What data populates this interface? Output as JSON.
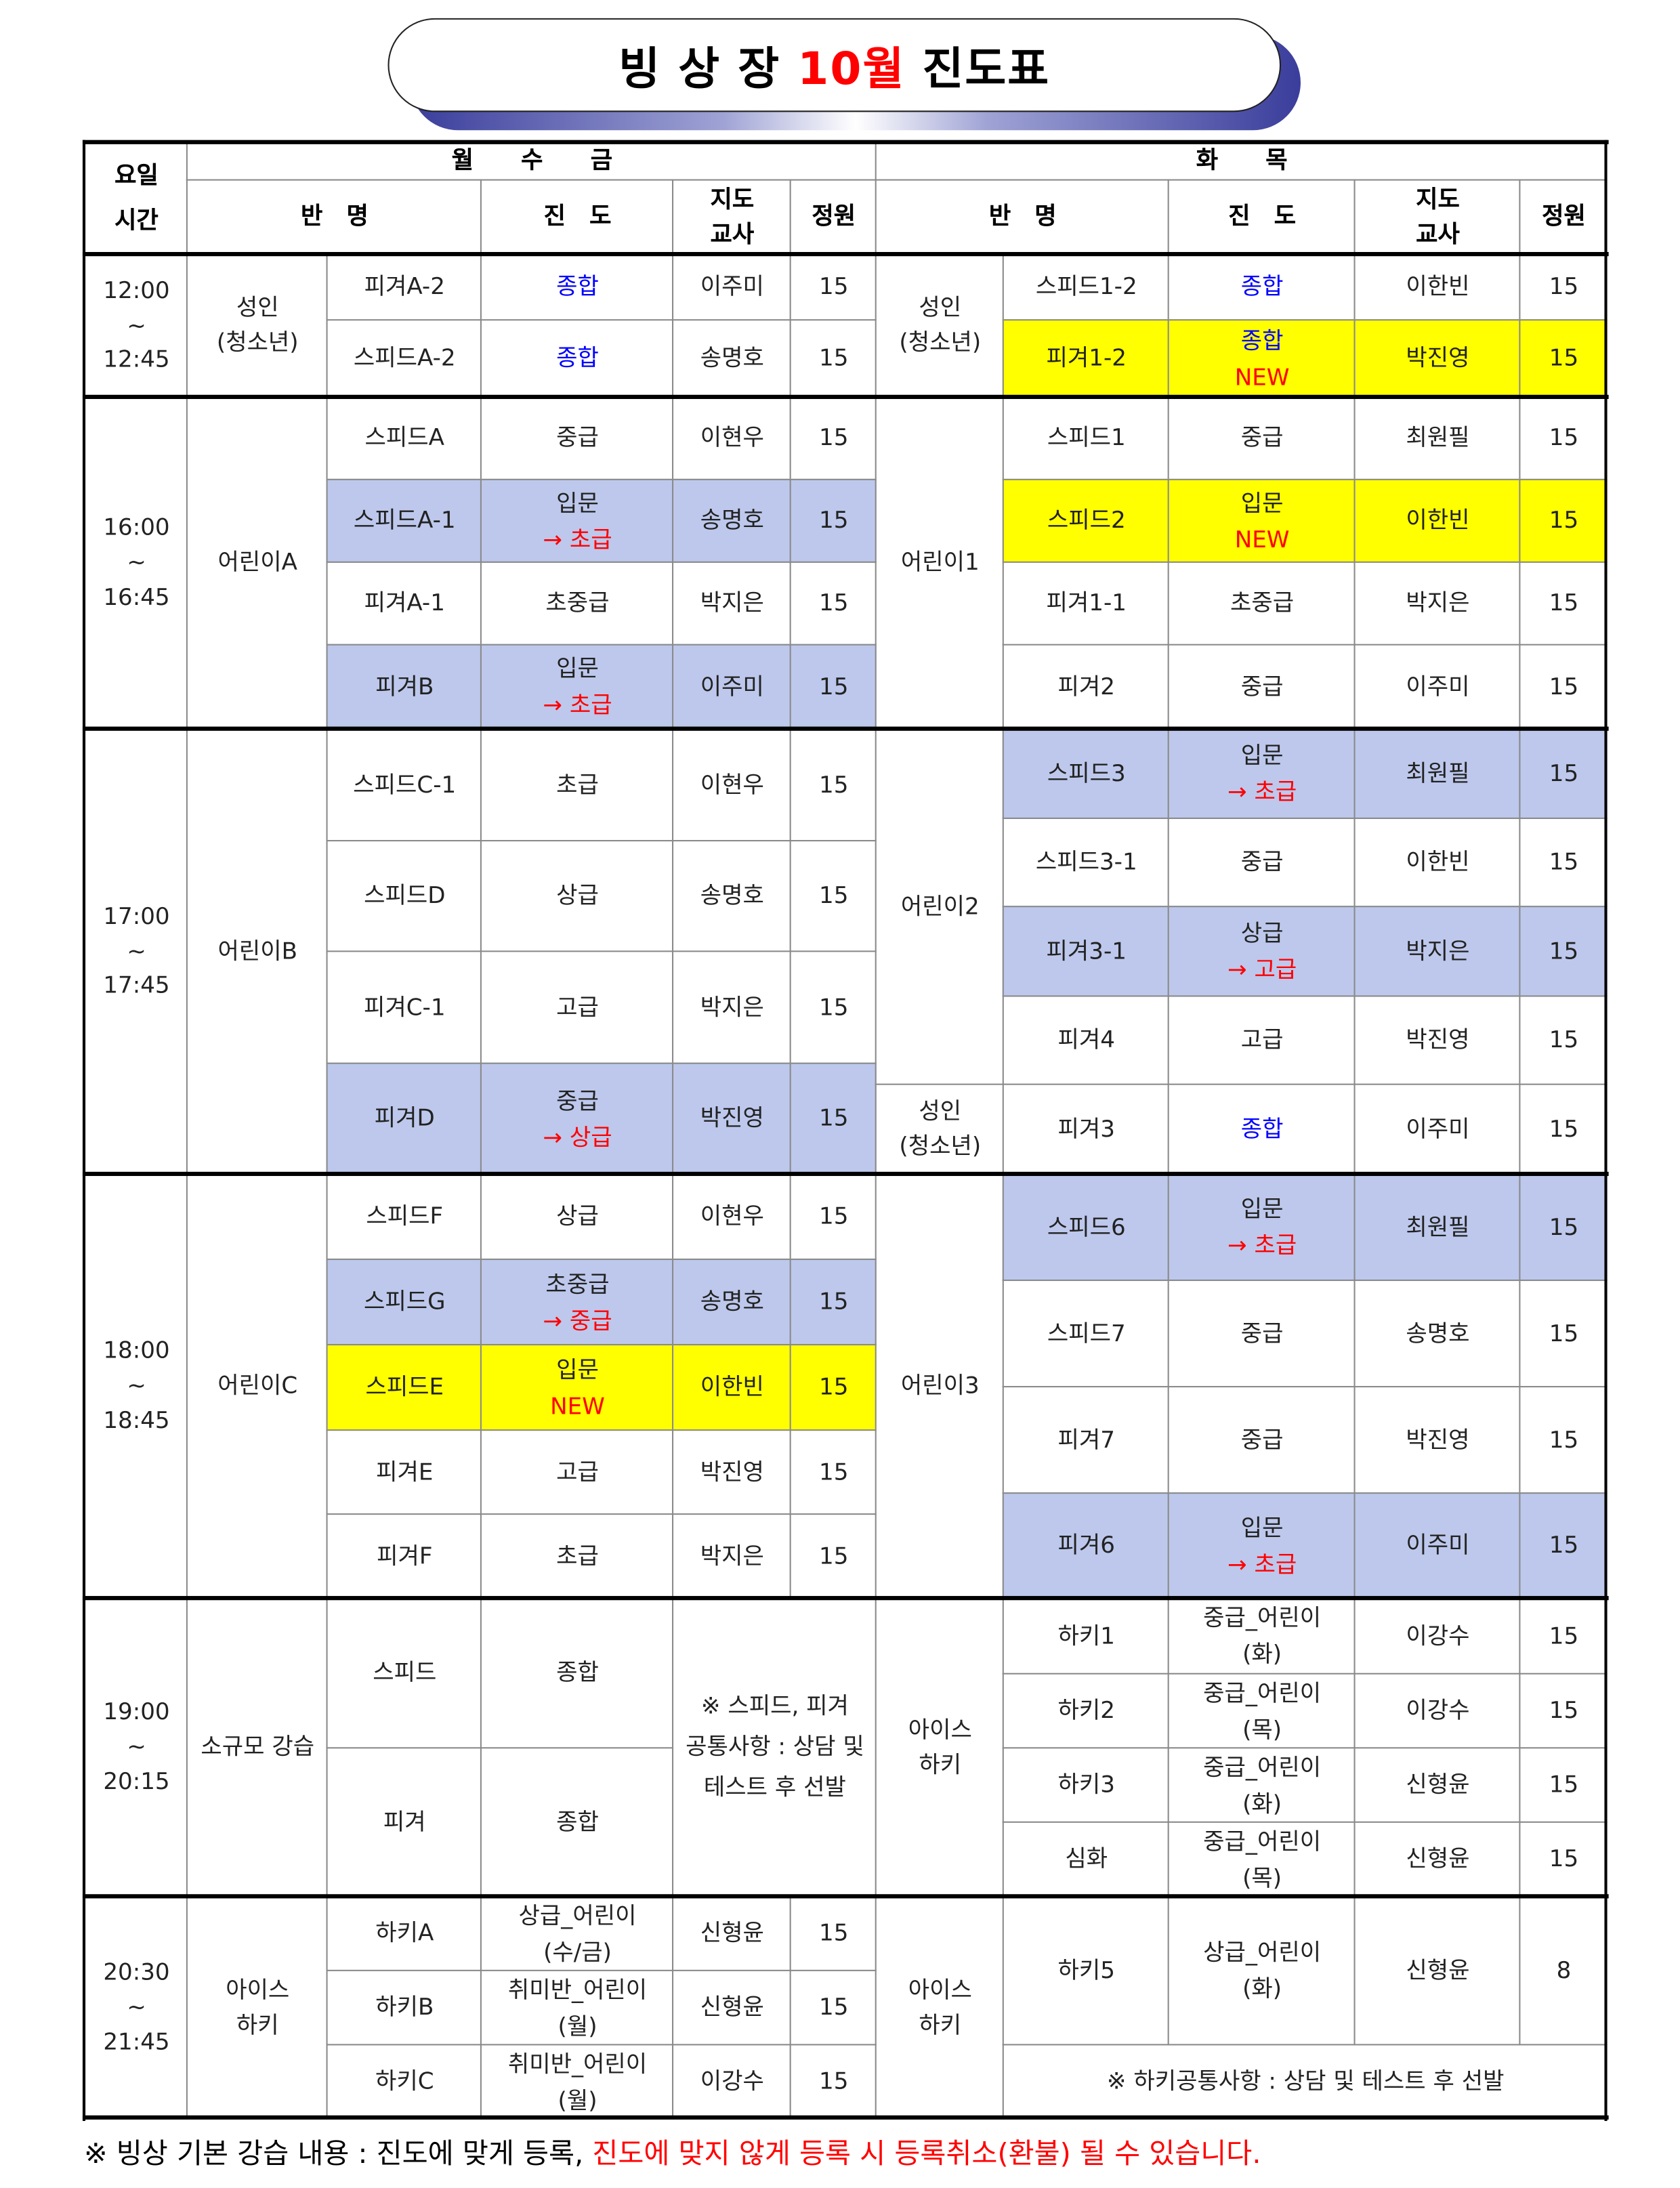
{
  "title": {
    "prefix": "빙 상 장 ",
    "month": "10월",
    "suffix": " 진도표",
    "month_color": "#ff0000"
  },
  "colors": {
    "highlight_blue": "#bdc8ec",
    "highlight_yellow": "#ffff00",
    "text_blue": "#0000ff",
    "text_red": "#ff0000"
  },
  "header": {
    "day": "요일",
    "time": "시간",
    "mwf": "월　　수　　금",
    "tt": "화　　목",
    "class_name": "반　명",
    "progress": "진　도",
    "teacher_1": "지도",
    "teacher_2": "교사",
    "capacity": "정원"
  },
  "times": [
    [
      "12:00",
      "~",
      "12:45"
    ],
    [
      "16:00",
      "~",
      "16:45"
    ],
    [
      "17:00",
      "~",
      "17:45"
    ],
    [
      "18:00",
      "~",
      "18:45"
    ],
    [
      "19:00",
      "~",
      "20:15"
    ],
    [
      "20:30",
      "~",
      "21:45"
    ]
  ],
  "mwf": {
    "groups": [
      {
        "name": [
          "성인",
          "(청소년)"
        ],
        "rows": [
          {
            "class": "피겨A-2",
            "progress": [
              {
                "text": "종합",
                "color": "blue"
              }
            ],
            "teacher": "이주미",
            "capacity": "15"
          },
          {
            "class": "스피드A-2",
            "progress": [
              {
                "text": "종합",
                "color": "blue"
              }
            ],
            "teacher": "송명호",
            "capacity": "15"
          }
        ]
      },
      {
        "name": [
          "어린이A"
        ],
        "rows": [
          {
            "class": "스피드A",
            "progress": [
              {
                "text": "중급"
              }
            ],
            "teacher": "이현우",
            "capacity": "15"
          },
          {
            "class": "스피드A-1",
            "progress": [
              {
                "text": "입문"
              },
              {
                "text": "→ 초급",
                "color": "red"
              }
            ],
            "teacher": "송명호",
            "capacity": "15",
            "highlight": "blue"
          },
          {
            "class": "피겨A-1",
            "progress": [
              {
                "text": "초중급"
              }
            ],
            "teacher": "박지은",
            "capacity": "15"
          },
          {
            "class": "피겨B",
            "progress": [
              {
                "text": "입문"
              },
              {
                "text": "→ 초급",
                "color": "red"
              }
            ],
            "teacher": "이주미",
            "capacity": "15",
            "highlight": "blue"
          }
        ]
      },
      {
        "name": [
          "어린이B"
        ],
        "rows": [
          {
            "class": "스피드C-1",
            "progress": [
              {
                "text": "초급"
              }
            ],
            "teacher": "이현우",
            "capacity": "15"
          },
          {
            "class": "스피드D",
            "progress": [
              {
                "text": "상급"
              }
            ],
            "teacher": "송명호",
            "capacity": "15"
          },
          {
            "class": "피겨C-1",
            "progress": [
              {
                "text": "고급"
              }
            ],
            "teacher": "박지은",
            "capacity": "15"
          },
          {
            "class": "피겨D",
            "progress": [
              {
                "text": "중급"
              },
              {
                "text": "→ 상급",
                "color": "red"
              }
            ],
            "teacher": "박진영",
            "capacity": "15",
            "highlight": "blue"
          }
        ]
      },
      {
        "name": [
          "어린이C"
        ],
        "rows": [
          {
            "class": "스피드F",
            "progress": [
              {
                "text": "상급"
              }
            ],
            "teacher": "이현우",
            "capacity": "15"
          },
          {
            "class": "스피드G",
            "progress": [
              {
                "text": "초중급"
              },
              {
                "text": "→ 중급",
                "color": "red"
              }
            ],
            "teacher": "송명호",
            "capacity": "15",
            "highlight": "blue"
          },
          {
            "class": "스피드E",
            "progress": [
              {
                "text": "입문"
              },
              {
                "text": "NEW",
                "color": "red"
              }
            ],
            "teacher": "이한빈",
            "capacity": "15",
            "highlight": "yellow"
          },
          {
            "class": "피겨E",
            "progress": [
              {
                "text": "고급"
              }
            ],
            "teacher": "박진영",
            "capacity": "15"
          },
          {
            "class": "피겨F",
            "progress": [
              {
                "text": "초급"
              }
            ],
            "teacher": "박지은",
            "capacity": "15"
          }
        ]
      },
      {
        "name": [
          "소규모 강습"
        ],
        "rows": [
          {
            "class": "스피드",
            "progress": [
              {
                "text": "종합"
              }
            ]
          },
          {
            "class": "피겨",
            "progress": [
              {
                "text": "종합"
              }
            ]
          }
        ],
        "note": [
          "※ 스피드, 피겨",
          "공통사항 : 상담 및",
          "테스트 후 선발"
        ]
      },
      {
        "name": [
          "아이스",
          "하키"
        ],
        "rows": [
          {
            "class": "하키A",
            "progress": [
              {
                "text": "상급_어린이"
              },
              {
                "text": "(수/금)"
              }
            ],
            "teacher": "신형윤",
            "capacity": "15"
          },
          {
            "class": "하키B",
            "progress": [
              {
                "text": "취미반_어린이"
              },
              {
                "text": "(월)"
              }
            ],
            "teacher": "신형윤",
            "capacity": "15"
          },
          {
            "class": "하키C",
            "progress": [
              {
                "text": "취미반_어린이"
              },
              {
                "text": "(월)"
              }
            ],
            "teacher": "이강수",
            "capacity": "15"
          }
        ]
      }
    ]
  },
  "tt": {
    "groups": [
      {
        "name": [
          "성인",
          "(청소년)"
        ],
        "rows": [
          {
            "class": "스피드1-2",
            "progress": [
              {
                "text": "종합",
                "color": "blue"
              }
            ],
            "teacher": "이한빈",
            "capacity": "15"
          },
          {
            "class": "피겨1-2",
            "progress": [
              {
                "text": "종합",
                "color": "blue"
              },
              {
                "text": "NEW",
                "color": "red"
              }
            ],
            "teacher": "박진영",
            "capacity": "15",
            "highlight": "yellow"
          }
        ]
      },
      {
        "name": [
          "어린이1"
        ],
        "rows": [
          {
            "class": "스피드1",
            "progress": [
              {
                "text": "중급"
              }
            ],
            "teacher": "최원필",
            "capacity": "15"
          },
          {
            "class": "스피드2",
            "progress": [
              {
                "text": "입문"
              },
              {
                "text": "NEW",
                "color": "red"
              }
            ],
            "teacher": "이한빈",
            "capacity": "15",
            "highlight": "yellow"
          },
          {
            "class": "피겨1-1",
            "progress": [
              {
                "text": "초중급"
              }
            ],
            "teacher": "박지은",
            "capacity": "15"
          },
          {
            "class": "피겨2",
            "progress": [
              {
                "text": "중급"
              }
            ],
            "teacher": "이주미",
            "capacity": "15"
          }
        ]
      },
      {
        "name": [
          "어린이2"
        ],
        "rows": [
          {
            "class": "스피드3",
            "progress": [
              {
                "text": "입문"
              },
              {
                "text": "→ 초급",
                "color": "red"
              }
            ],
            "teacher": "최원필",
            "capacity": "15",
            "highlight": "blue"
          },
          {
            "class": "스피드3-1",
            "progress": [
              {
                "text": "중급"
              }
            ],
            "teacher": "이한빈",
            "capacity": "15"
          },
          {
            "class": "피겨3-1",
            "progress": [
              {
                "text": "상급"
              },
              {
                "text": "→ 고급",
                "color": "red"
              }
            ],
            "teacher": "박지은",
            "capacity": "15",
            "highlight": "blue"
          },
          {
            "class": "피겨4",
            "progress": [
              {
                "text": "고급"
              }
            ],
            "teacher": "박진영",
            "capacity": "15"
          }
        ]
      },
      {
        "name": [
          "성인",
          "(청소년)"
        ],
        "rows": [
          {
            "class": "피겨3",
            "progress": [
              {
                "text": "종합",
                "color": "blue"
              }
            ],
            "teacher": "이주미",
            "capacity": "15"
          }
        ]
      },
      {
        "name": [
          "어린이3"
        ],
        "rows": [
          {
            "class": "스피드6",
            "progress": [
              {
                "text": "입문"
              },
              {
                "text": "→ 초급",
                "color": "red"
              }
            ],
            "teacher": "최원필",
            "capacity": "15",
            "highlight": "blue"
          },
          {
            "class": "스피드7",
            "progress": [
              {
                "text": "중급"
              }
            ],
            "teacher": "송명호",
            "capacity": "15"
          },
          {
            "class": "피겨7",
            "progress": [
              {
                "text": "중급"
              }
            ],
            "teacher": "박진영",
            "capacity": "15"
          },
          {
            "class": "피겨6",
            "progress": [
              {
                "text": "입문"
              },
              {
                "text": "→ 초급",
                "color": "red"
              }
            ],
            "teacher": "이주미",
            "capacity": "15",
            "highlight": "blue"
          }
        ]
      },
      {
        "name": [
          "아이스",
          "하키"
        ],
        "rows": [
          {
            "class": "하키1",
            "progress": [
              {
                "text": "중급_어린이"
              },
              {
                "text": "(화)"
              }
            ],
            "teacher": "이강수",
            "capacity": "15"
          },
          {
            "class": "하키2",
            "progress": [
              {
                "text": "중급_어린이"
              },
              {
                "text": "(목)"
              }
            ],
            "teacher": "이강수",
            "capacity": "15"
          },
          {
            "class": "하키3",
            "progress": [
              {
                "text": "중급_어린이"
              },
              {
                "text": "(화)"
              }
            ],
            "teacher": "신형윤",
            "capacity": "15"
          },
          {
            "class": "심화",
            "progress": [
              {
                "text": "중급_어린이"
              },
              {
                "text": "(목)"
              }
            ],
            "teacher": "신형윤",
            "capacity": "15"
          }
        ]
      },
      {
        "name": [
          "아이스",
          "하키"
        ],
        "rows": [
          {
            "class": "하키5",
            "progress": [
              {
                "text": "상급_어린이"
              },
              {
                "text": "(화)"
              }
            ],
            "teacher": "신형윤",
            "capacity": "8"
          }
        ],
        "note": [
          "※ 하키공통사항 : 상담 및 테스트 후 선발"
        ]
      }
    ]
  },
  "footer": {
    "text": "※ 빙상 기본 강습 내용 : 진도에 맞게 등록, ",
    "warning": "진도에 맞지 않게 등록 시 등록취소(환불) 될 수 있습니다."
  }
}
